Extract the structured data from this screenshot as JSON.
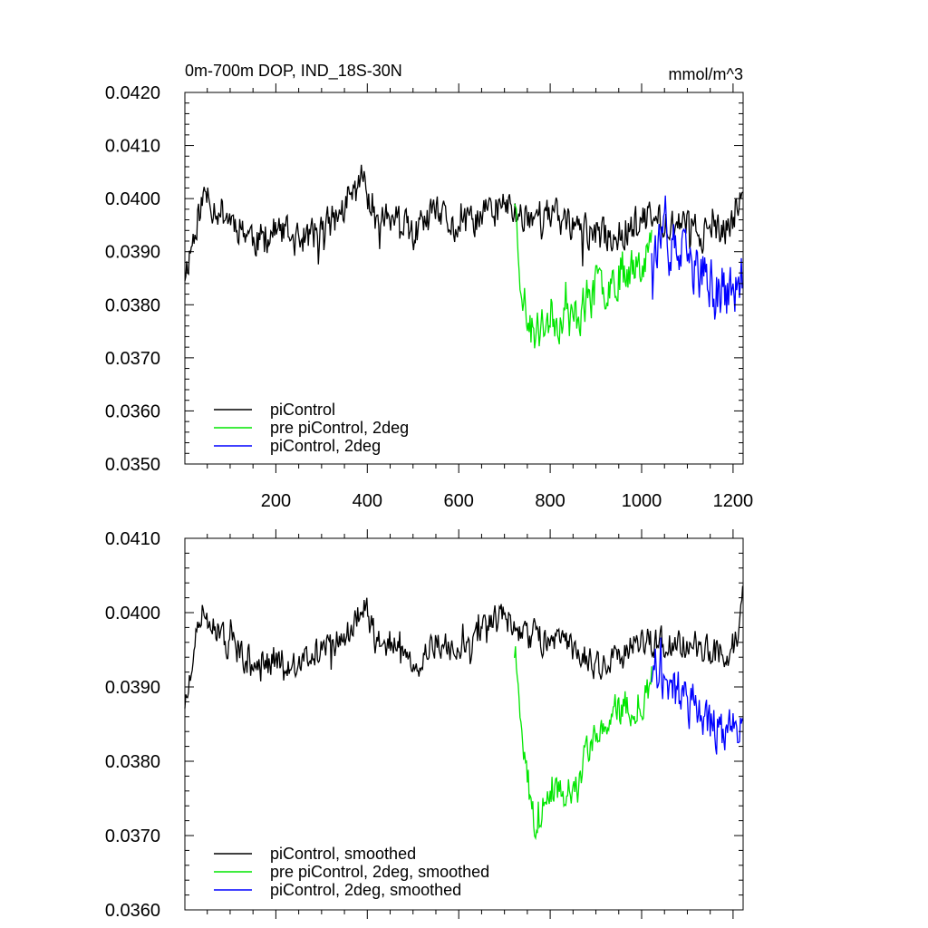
{
  "chart_data": [
    {
      "type": "line",
      "title": "0m-700m DOP, IND_18S-30N",
      "units": "mmol/m^3",
      "xlim": [
        1,
        1222
      ],
      "ylim": [
        0.035,
        0.042
      ],
      "xticks": [
        200,
        400,
        600,
        800,
        1000,
        1200
      ],
      "xtick_labels": [
        "200",
        "400",
        "600",
        "800",
        "1000",
        "1200"
      ],
      "yticks": [
        0.035,
        0.036,
        0.037,
        0.038,
        0.039,
        0.04,
        0.041,
        0.042
      ],
      "ytick_labels": [
        "0.0350",
        "0.0360",
        "0.0370",
        "0.0380",
        "0.0390",
        "0.0400",
        "0.0410",
        "0.0420"
      ],
      "legend_position": "bottom-left",
      "series": [
        {
          "name": "piControl",
          "color": "#000000",
          "x_start": 1,
          "x_end": 1222,
          "anchors": [
            [
              1,
              0.0386
            ],
            [
              15,
              0.0391
            ],
            [
              30,
              0.0397
            ],
            [
              45,
              0.0401
            ],
            [
              60,
              0.0399
            ],
            [
              90,
              0.0397
            ],
            [
              120,
              0.0395
            ],
            [
              160,
              0.0392
            ],
            [
              200,
              0.0394
            ],
            [
              250,
              0.0392
            ],
            [
              300,
              0.0394
            ],
            [
              350,
              0.0398
            ],
            [
              390,
              0.0404
            ],
            [
              420,
              0.0397
            ],
            [
              460,
              0.0396
            ],
            [
              500,
              0.0393
            ],
            [
              550,
              0.0397
            ],
            [
              600,
              0.0394
            ],
            [
              650,
              0.0397
            ],
            [
              700,
              0.0399
            ],
            [
              725,
              0.0397
            ],
            [
              760,
              0.0397
            ],
            [
              800,
              0.0397
            ],
            [
              850,
              0.0395
            ],
            [
              900,
              0.0393
            ],
            [
              950,
              0.0393
            ],
            [
              1000,
              0.0396
            ],
            [
              1050,
              0.0396
            ],
            [
              1100,
              0.0395
            ],
            [
              1150,
              0.0393
            ],
            [
              1190,
              0.0394
            ],
            [
              1210,
              0.0399
            ],
            [
              1222,
              0.0401
            ]
          ],
          "noise": 0.00045,
          "seed": 11
        },
        {
          "name": "pre piControl, 2deg",
          "color": "#00e600",
          "x_start": 722,
          "x_end": 1022,
          "anchors": [
            [
              722,
              0.0401
            ],
            [
              735,
              0.0386
            ],
            [
              750,
              0.0377
            ],
            [
              765,
              0.0374
            ],
            [
              800,
              0.0378
            ],
            [
              850,
              0.0377
            ],
            [
              900,
              0.0383
            ],
            [
              950,
              0.0386
            ],
            [
              1000,
              0.0389
            ],
            [
              1022,
              0.0391
            ]
          ],
          "noise": 0.0006,
          "seed": 23
        },
        {
          "name": "piControl, 2deg",
          "color": "#0000ff",
          "x_start": 1022,
          "x_end": 1222,
          "anchors": [
            [
              1022,
              0.0392
            ],
            [
              1060,
              0.0391
            ],
            [
              1100,
              0.0388
            ],
            [
              1150,
              0.0384
            ],
            [
              1180,
              0.0382
            ],
            [
              1222,
              0.0383
            ]
          ],
          "noise": 0.0007,
          "seed": 37
        }
      ]
    },
    {
      "type": "line",
      "title": "",
      "units": "",
      "xlim": [
        1,
        1222
      ],
      "ylim": [
        0.036,
        0.041
      ],
      "xticks": [
        200,
        400,
        600,
        800,
        1000,
        1200
      ],
      "xtick_labels": [],
      "yticks": [
        0.036,
        0.037,
        0.038,
        0.039,
        0.04,
        0.041
      ],
      "ytick_labels": [
        "0.0360",
        "0.0370",
        "0.0380",
        "0.0390",
        "0.0400",
        "0.0410"
      ],
      "legend_position": "bottom-left",
      "series": [
        {
          "name": "piControl, smoothed",
          "color": "#000000",
          "x_start": 1,
          "x_end": 1222,
          "anchors": [
            [
              1,
              0.0388
            ],
            [
              15,
              0.0391
            ],
            [
              30,
              0.0398
            ],
            [
              45,
              0.0401
            ],
            [
              60,
              0.0398
            ],
            [
              90,
              0.0396
            ],
            [
              120,
              0.0395
            ],
            [
              160,
              0.0392
            ],
            [
              200,
              0.0394
            ],
            [
              250,
              0.0393
            ],
            [
              300,
              0.0395
            ],
            [
              350,
              0.0397
            ],
            [
              395,
              0.0401
            ],
            [
              420,
              0.0396
            ],
            [
              460,
              0.0396
            ],
            [
              500,
              0.0392
            ],
            [
              550,
              0.0396
            ],
            [
              600,
              0.0394
            ],
            [
              650,
              0.0397
            ],
            [
              700,
              0.04
            ],
            [
              725,
              0.0397
            ],
            [
              760,
              0.0397
            ],
            [
              800,
              0.0396
            ],
            [
              850,
              0.0395
            ],
            [
              900,
              0.0393
            ],
            [
              950,
              0.0394
            ],
            [
              1000,
              0.0396
            ],
            [
              1050,
              0.0396
            ],
            [
              1100,
              0.0396
            ],
            [
              1150,
              0.0395
            ],
            [
              1190,
              0.0394
            ],
            [
              1210,
              0.0397
            ],
            [
              1222,
              0.0402
            ]
          ],
          "noise": 0.00028,
          "seed": 51
        },
        {
          "name": "pre piControl, 2deg, smoothed",
          "color": "#00e600",
          "x_start": 722,
          "x_end": 1022,
          "anchors": [
            [
              722,
              0.0395
            ],
            [
              735,
              0.0387
            ],
            [
              750,
              0.0378
            ],
            [
              765,
              0.0372
            ],
            [
              800,
              0.0377
            ],
            [
              850,
              0.0375
            ],
            [
              900,
              0.0384
            ],
            [
              950,
              0.0387
            ],
            [
              1000,
              0.0388
            ],
            [
              1022,
              0.0391
            ]
          ],
          "noise": 0.00035,
          "seed": 63
        },
        {
          "name": "piControl, 2deg, smoothed",
          "color": "#0000ff",
          "x_start": 1022,
          "x_end": 1222,
          "anchors": [
            [
              1022,
              0.0392
            ],
            [
              1060,
              0.039
            ],
            [
              1100,
              0.0388
            ],
            [
              1150,
              0.0385
            ],
            [
              1180,
              0.0384
            ],
            [
              1222,
              0.0386
            ]
          ],
          "noise": 0.00045,
          "seed": 77
        }
      ]
    }
  ]
}
